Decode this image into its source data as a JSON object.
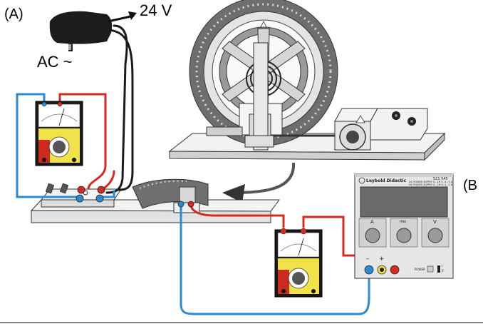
{
  "labels": {
    "panel_a": "(A)",
    "panel_b": "(B",
    "adapter_voltage": "24 V",
    "adapter_input": "AC ~"
  },
  "power_supply": {
    "brand": "Leybold Didactic",
    "model": "521 545",
    "spec_line_1": "DC POWER SUPPLY 0...16 V, 0...5 A",
    "spec_line_2": "DC POWER SUPPLY 0...16 V, 0...5 A",
    "knob_a_label": "A",
    "knob_fine_label": "FINE",
    "knob_v_label": "V",
    "terminal_minus": "–",
    "terminal_plus": "+",
    "power_label": "POWER",
    "switch_on": "I",
    "switch_off": "0"
  },
  "colors": {
    "wire_red": "#d42a20",
    "wire_blue": "#2a8ad4",
    "wire_black": "#1a1a1a",
    "meter_yellow": "#f2e24a",
    "meter_red": "#cc2a1e",
    "panel_gray": "#e6e6e6"
  },
  "icons": {
    "adapter": "ac-power-adapter-icon",
    "meter": "analog-multimeter-icon",
    "pendulum": "pohl-torsion-pendulum-icon",
    "motor": "eccentric-drive-motor-icon",
    "brake": "eddy-current-brake-icon",
    "supply": "dc-power-supply-icon"
  }
}
